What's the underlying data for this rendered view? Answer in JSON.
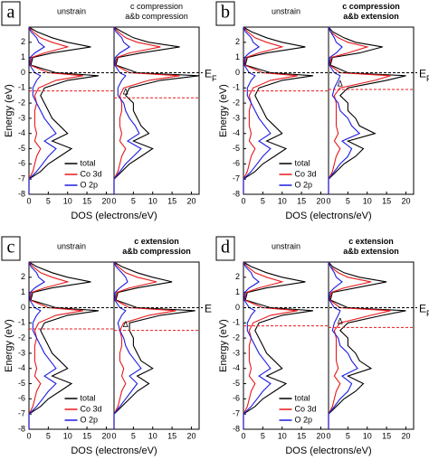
{
  "chart_data": [
    {
      "type": "line",
      "panel": "a",
      "ylabel": "Energy (eV)",
      "xlabel": "DOS (electrons/eV)",
      "fermi_label": "E",
      "fermi_sub": "F",
      "fermi_level": 0,
      "delta_label": "Δ",
      "legend_corner": "lower right",
      "y": [
        -8,
        -7,
        -6.5,
        -6,
        -5.5,
        -5,
        -4.5,
        -4,
        -3.5,
        -3,
        -2.5,
        -2,
        -1.5,
        -1,
        -0.5,
        -0.2,
        0,
        0.5,
        1,
        1.3,
        1.7,
        2,
        2.3,
        2.7,
        3
      ],
      "ylim": [
        -8,
        3
      ],
      "yticks": [
        -8,
        -7,
        -6,
        -5,
        -4,
        -3,
        -2,
        -1,
        0,
        1,
        2
      ],
      "series": [
        {
          "name": "total",
          "color": "#000000"
        },
        {
          "name": "Co 3d",
          "color": "#e8191c"
        },
        {
          "name": "O 2p",
          "color": "#1c1ce0"
        }
      ],
      "subplots": [
        {
          "title": [
            "unstrain"
          ],
          "xlim": [
            0,
            22
          ],
          "xticks": [
            0,
            5,
            10,
            15,
            20
          ],
          "edge": -1.2,
          "values": [
            [
              0,
              0,
              3,
              5,
              8,
              11,
              6,
              10,
              8,
              6,
              5,
              4,
              3,
              4,
              10,
              18,
              7,
              0.5,
              1,
              6,
              16,
              10,
              6,
              2,
              0
            ],
            [
              0,
              0,
              1,
              1.5,
              2,
              3,
              1.5,
              2,
              1.5,
              1.5,
              1.5,
              2,
              1.5,
              2.5,
              7,
              14,
              5,
              0.3,
              0.7,
              4,
              10,
              6,
              3,
              1,
              0
            ],
            [
              0,
              0,
              2,
              3.5,
              5,
              7,
              4,
              7,
              5.5,
              4,
              3,
              2,
              1,
              1,
              2,
              3,
              1.5,
              0.2,
              0.3,
              1.5,
              4,
              2.5,
              2,
              0.5,
              0
            ]
          ]
        },
        {
          "title": [
            "c compression",
            "a&b compression"
          ],
          "xlim": [
            0,
            22
          ],
          "xticks": [
            0,
            5,
            10,
            15,
            20
          ],
          "edge": -1.65,
          "values": [
            [
              0,
              0,
              2,
              4,
              7,
              10,
              5,
              9,
              7,
              6,
              5,
              5,
              3,
              4,
              12,
              22,
              6,
              0.5,
              1,
              7,
              17,
              9,
              5,
              2,
              0
            ],
            [
              0,
              0,
              1,
              1.5,
              2,
              3,
              1.5,
              2,
              1.5,
              1.5,
              2,
              2,
              1.5,
              2.5,
              9,
              17,
              4,
              0.3,
              0.7,
              4,
              12,
              6,
              3,
              1,
              0
            ],
            [
              0,
              0,
              1.5,
              3,
              5,
              7,
              3.5,
              6.5,
              5.5,
              4,
              3,
              2.5,
              1,
              1,
              2,
              3,
              1.5,
              0.2,
              0.3,
              1.5,
              4,
              2.5,
              2,
              0.5,
              0
            ]
          ]
        }
      ]
    },
    {
      "type": "line",
      "panel": "b",
      "ylabel": "Energy (eV)",
      "xlabel": "DOS (electrons/eV)",
      "fermi_label": "E",
      "fermi_sub": "F",
      "fermi_level": 0,
      "delta_label": "Δ",
      "legend_corner": "lower right",
      "y": [
        -8,
        -7,
        -6.5,
        -6,
        -5.5,
        -5,
        -4.5,
        -4,
        -3.5,
        -3,
        -2.5,
        -2,
        -1.5,
        -1,
        -0.5,
        -0.2,
        0,
        0.5,
        1,
        1.3,
        1.7,
        2,
        2.3,
        2.7,
        3
      ],
      "ylim": [
        -8,
        3
      ],
      "yticks": [
        -8,
        -7,
        -6,
        -5,
        -4,
        -3,
        -2,
        -1,
        0,
        1,
        2
      ],
      "series": [
        {
          "name": "total",
          "color": "#000000"
        },
        {
          "name": "Co 3d",
          "color": "#e8191c"
        },
        {
          "name": "O 2p",
          "color": "#1c1ce0"
        }
      ],
      "subplots": [
        {
          "title": [
            "unstrain"
          ],
          "xlim": [
            0,
            22
          ],
          "xticks": [
            0,
            5,
            10,
            15,
            20
          ],
          "edge": -1.2,
          "values": [
            [
              0,
              0,
              3,
              5,
              8,
              11,
              6,
              10,
              8,
              6,
              5,
              4,
              3,
              4,
              10,
              18,
              7,
              0.5,
              1,
              6,
              16,
              10,
              6,
              2,
              0
            ],
            [
              0,
              0,
              1,
              1.5,
              2,
              3,
              1.5,
              2,
              1.5,
              1.5,
              1.5,
              2,
              1.5,
              2.5,
              7,
              14,
              5,
              0.3,
              0.7,
              4,
              10,
              6,
              3,
              1,
              0
            ],
            [
              0,
              0,
              2,
              3.5,
              5,
              7,
              4,
              7,
              5.5,
              4,
              3,
              2,
              1,
              1,
              2,
              3,
              1.5,
              0.2,
              0.3,
              1.5,
              4,
              2.5,
              2,
              0.5,
              0
            ]
          ]
        },
        {
          "title": [
            "c compression",
            "a&b extension"
          ],
          "xlim": [
            0,
            22
          ],
          "xticks": [
            0,
            5,
            10,
            15,
            20
          ],
          "edge": -1.1,
          "values": [
            [
              0,
              0,
              2,
              4,
              7,
              9,
              5,
              12,
              8,
              7,
              5,
              5,
              3,
              5,
              15,
              20,
              5,
              0.5,
              1,
              8,
              14,
              7,
              4,
              1,
              0
            ],
            [
              0,
              0,
              1,
              1.5,
              2,
              3,
              1.5,
              2.5,
              2,
              2,
              2,
              2,
              1.5,
              3,
              12,
              16,
              3,
              0.3,
              0.7,
              5,
              10,
              5,
              2.5,
              0.5,
              0
            ],
            [
              0,
              0,
              1.5,
              3,
              5,
              6,
              3.5,
              8,
              6,
              5,
              3,
              2.5,
              1,
              1.5,
              2.5,
              3,
              1.5,
              0.2,
              0.3,
              2,
              3.5,
              2,
              1.5,
              0.5,
              0
            ]
          ]
        }
      ]
    },
    {
      "type": "line",
      "panel": "c",
      "ylabel": "Energy (eV)",
      "xlabel": "DOS (electrons/eV)",
      "fermi_label": "E",
      "fermi_level": 0,
      "delta_label": "Δ",
      "legend_corner": "lower right",
      "y": [
        -8,
        -7,
        -6.5,
        -6,
        -5.5,
        -5,
        -4.5,
        -4,
        -3.5,
        -3,
        -2.5,
        -2,
        -1.5,
        -1,
        -0.5,
        -0.2,
        0,
        0.5,
        1,
        1.3,
        1.7,
        2,
        2.3,
        2.7,
        3
      ],
      "ylim": [
        -8,
        3
      ],
      "yticks": [
        -8,
        -7,
        -6,
        -5,
        -4,
        -3,
        -2,
        -1,
        0,
        1,
        2
      ],
      "series": [
        {
          "name": "total",
          "color": "#000000"
        },
        {
          "name": "Co 3d",
          "color": "#e8191c"
        },
        {
          "name": "O 2p",
          "color": "#1c1ce0"
        }
      ],
      "subplots": [
        {
          "title": [
            "unstrain"
          ],
          "xlim": [
            0,
            22
          ],
          "xticks": [
            0,
            5,
            10,
            15,
            20
          ],
          "edge": -1.4,
          "values": [
            [
              0,
              0,
              3,
              5,
              8,
              11,
              6,
              10,
              8,
              6,
              5,
              4,
              3,
              4,
              10,
              18,
              7,
              0.5,
              1,
              6,
              16,
              10,
              6,
              2,
              0
            ],
            [
              0,
              0,
              1,
              1.5,
              2,
              3,
              1.5,
              2,
              1.5,
              1.5,
              1.5,
              2,
              1.5,
              2.5,
              7,
              14,
              5,
              0.3,
              0.7,
              4,
              10,
              6,
              3,
              1,
              0
            ],
            [
              0,
              0,
              2,
              3.5,
              5,
              7,
              4,
              7,
              5.5,
              4,
              3,
              2,
              1,
              1,
              2,
              3,
              1.5,
              0.2,
              0.3,
              1.5,
              4,
              2.5,
              2,
              0.5,
              0
            ]
          ]
        },
        {
          "title": [
            "c extension",
            "a&b compression"
          ],
          "xlim": [
            0,
            22
          ],
          "xticks": [
            0,
            5,
            10,
            15,
            20
          ],
          "edge": -1.5,
          "values": [
            [
              0,
              0,
              2,
              4,
              6,
              9,
              6,
              10,
              7,
              6,
              5,
              5,
              4,
              4,
              12,
              21,
              6,
              0.5,
              1,
              6,
              15,
              10,
              6,
              2,
              0
            ],
            [
              0,
              0,
              1,
              1.5,
              2,
              3,
              2,
              2.5,
              1.5,
              1.5,
              2,
              2,
              1.5,
              2.5,
              9,
              16,
              4,
              0.3,
              0.7,
              4,
              11,
              6,
              3,
              1,
              0
            ],
            [
              0,
              0,
              1.5,
              3,
              4.5,
              6,
              4,
              7,
              5.5,
              4,
              3,
              2.5,
              1.5,
              1,
              2,
              3,
              1.5,
              0.2,
              0.3,
              1.5,
              3.5,
              3,
              2,
              0.5,
              0
            ]
          ]
        }
      ]
    },
    {
      "type": "line",
      "panel": "d",
      "ylabel": "Energy (eV)",
      "xlabel": "DOS (electrons/eV)",
      "fermi_label": "E",
      "fermi_sub": "F",
      "fermi_level": 0,
      "delta_label": "Δ",
      "legend_corner": "lower right",
      "y": [
        -8,
        -7,
        -6.5,
        -6,
        -5.5,
        -5,
        -4.5,
        -4,
        -3.5,
        -3,
        -2.5,
        -2,
        -1.5,
        -1,
        -0.5,
        -0.2,
        0,
        0.5,
        1,
        1.3,
        1.7,
        2,
        2.3,
        2.7,
        3
      ],
      "ylim": [
        -8,
        3
      ],
      "yticks": [
        -8,
        -7,
        -6,
        -5,
        -4,
        -3,
        -2,
        -1,
        0,
        1,
        2
      ],
      "series": [
        {
          "name": "total",
          "color": "#000000"
        },
        {
          "name": "Co 3d",
          "color": "#e8191c"
        },
        {
          "name": "O 2p",
          "color": "#1c1ce0"
        }
      ],
      "subplots": [
        {
          "title": [
            "unstrain"
          ],
          "xlim": [
            0,
            22
          ],
          "xticks": [
            0,
            5,
            10,
            15,
            20
          ],
          "edge": -1.2,
          "values": [
            [
              0,
              0,
              3,
              5,
              8,
              11,
              6,
              10,
              8,
              6,
              5,
              4,
              3,
              4,
              10,
              18,
              7,
              0.5,
              1,
              6,
              16,
              10,
              6,
              2,
              0
            ],
            [
              0,
              0,
              1,
              1.5,
              2,
              3,
              1.5,
              2,
              1.5,
              1.5,
              1.5,
              2,
              1.5,
              2.5,
              7,
              14,
              5,
              0.3,
              0.7,
              4,
              10,
              6,
              3,
              1,
              0
            ],
            [
              0,
              0,
              2,
              3.5,
              5,
              7,
              4,
              7,
              5.5,
              4,
              3,
              2,
              1,
              1,
              2,
              3,
              1.5,
              0.2,
              0.3,
              1.5,
              4,
              2.5,
              2,
              0.5,
              0
            ]
          ]
        },
        {
          "title": [
            "c extension",
            "a&b extension"
          ],
          "xlim": [
            0,
            22
          ],
          "xticks": [
            0,
            5,
            10,
            15,
            20
          ],
          "edge": -1.3,
          "values": [
            [
              0,
              0,
              2,
              4,
              7,
              9,
              5,
              11,
              8,
              7,
              5,
              5,
              3,
              5,
              14,
              20,
              5,
              0.5,
              1,
              7,
              15,
              8,
              4,
              1,
              0
            ],
            [
              0,
              0,
              1,
              1.5,
              2,
              3,
              1.5,
              2.5,
              2,
              2,
              2,
              2,
              1.5,
              3,
              11,
              16,
              3,
              0.3,
              0.7,
              4,
              11,
              5,
              2.5,
              0.5,
              0
            ],
            [
              0,
              0,
              1.5,
              3,
              5,
              6,
              3.5,
              7.5,
              6,
              5,
              3,
              2.5,
              1,
              1.5,
              2.5,
              3,
              1.5,
              0.2,
              0.3,
              1.5,
              3.5,
              2,
              1.5,
              0.5,
              0
            ]
          ]
        }
      ]
    }
  ]
}
